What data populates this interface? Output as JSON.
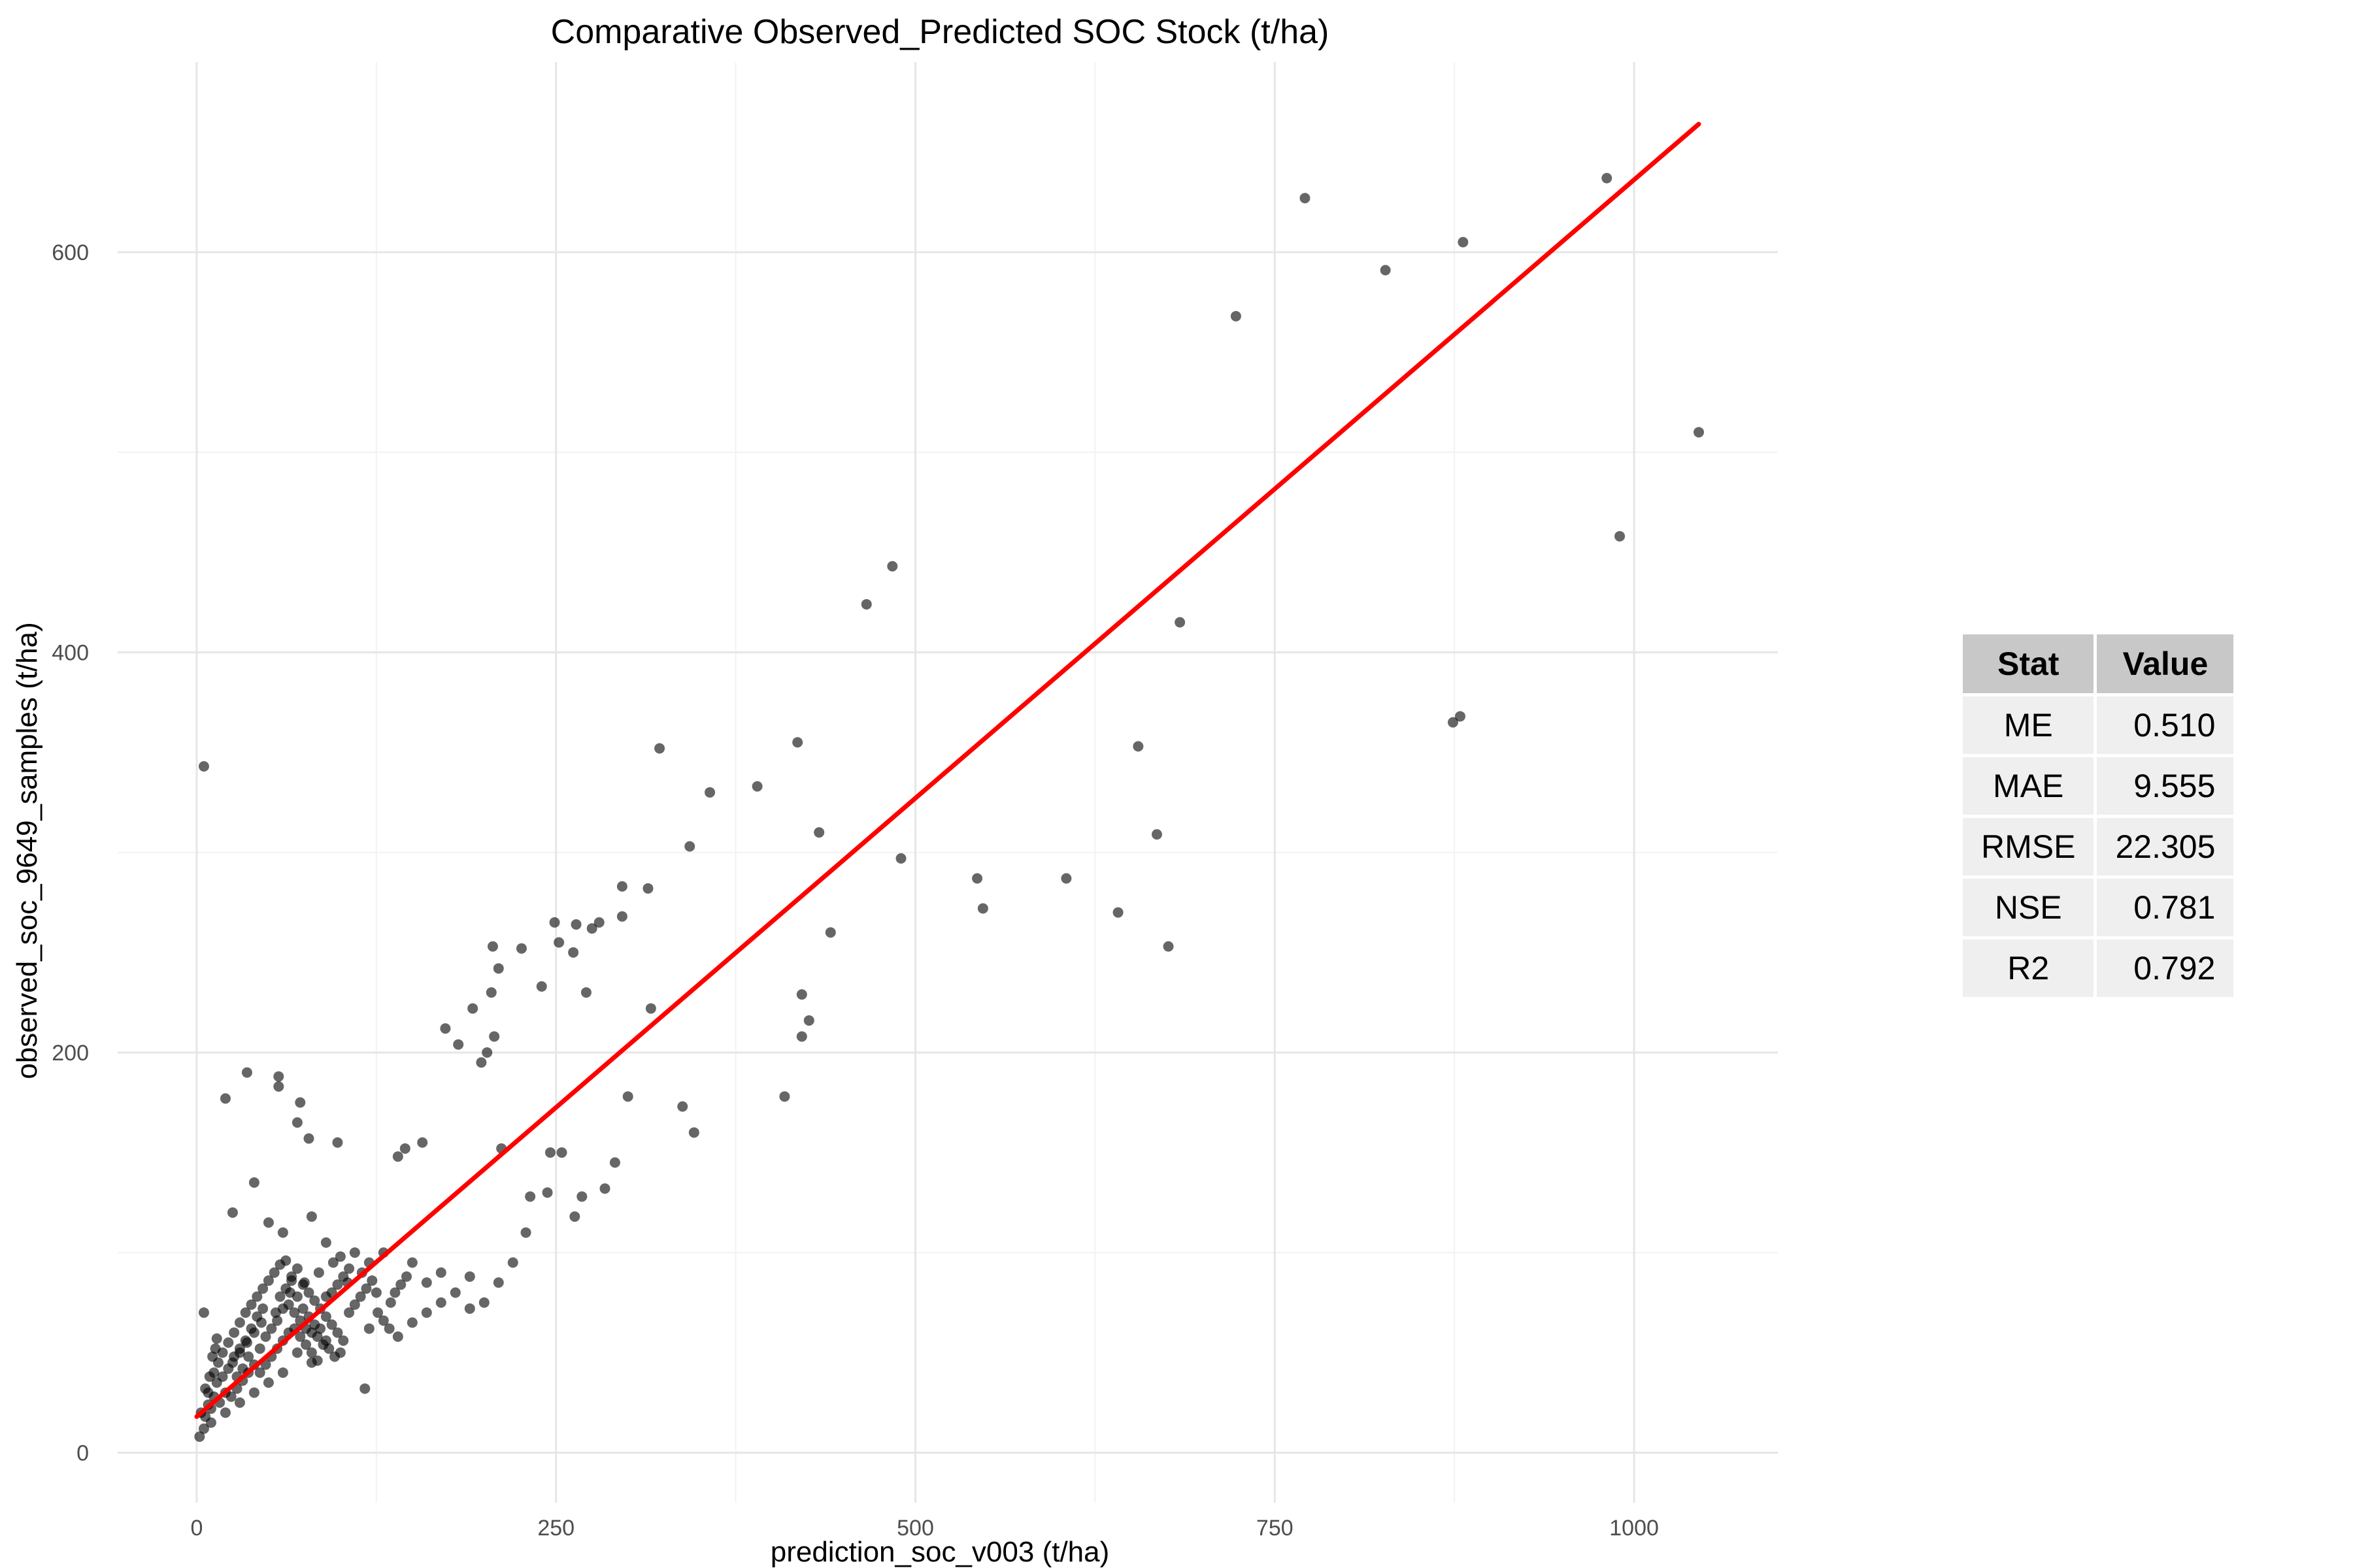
{
  "chart_data": {
    "type": "scatter",
    "title": "Comparative Observed_Predicted SOC Stock (t/ha)",
    "xlabel": "prediction_soc_v003 (t/ha)",
    "ylabel": "observed_soc_9649_samples (t/ha)",
    "xlim": [
      -55,
      1100
    ],
    "ylim": [
      -25,
      695
    ],
    "x_ticks": [
      0,
      250,
      500,
      750,
      1000
    ],
    "y_ticks": [
      0,
      200,
      400,
      600
    ],
    "grid": true,
    "point_color": "#000000",
    "line_color": "#ff0000",
    "fit_line": {
      "x": [
        0,
        1045
      ],
      "y": [
        18,
        664
      ]
    },
    "points": [
      [
        5,
        343
      ],
      [
        20,
        177
      ],
      [
        35,
        190
      ],
      [
        57,
        188
      ],
      [
        57,
        183
      ],
      [
        72,
        175
      ],
      [
        70,
        165
      ],
      [
        98,
        155
      ],
      [
        78,
        157
      ],
      [
        322,
        352
      ],
      [
        418,
        355
      ],
      [
        390,
        333
      ],
      [
        357,
        330
      ],
      [
        343,
        303
      ],
      [
        433,
        310
      ],
      [
        296,
        283
      ],
      [
        314,
        282
      ],
      [
        296,
        268
      ],
      [
        280,
        265
      ],
      [
        275,
        262
      ],
      [
        264,
        264
      ],
      [
        252,
        255
      ],
      [
        249,
        265
      ],
      [
        262,
        250
      ],
      [
        206,
        253
      ],
      [
        210,
        242
      ],
      [
        205,
        230
      ],
      [
        226,
        252
      ],
      [
        240,
        233
      ],
      [
        271,
        230
      ],
      [
        316,
        222
      ],
      [
        192,
        222
      ],
      [
        207,
        208
      ],
      [
        173,
        212
      ],
      [
        182,
        204
      ],
      [
        198,
        195
      ],
      [
        202,
        200
      ],
      [
        300,
        178
      ],
      [
        212,
        152
      ],
      [
        157,
        155
      ],
      [
        145,
        152
      ],
      [
        140,
        148
      ],
      [
        246,
        150
      ],
      [
        338,
        173
      ],
      [
        346,
        160
      ],
      [
        291,
        145
      ],
      [
        254,
        150
      ],
      [
        284,
        132
      ],
      [
        268,
        128
      ],
      [
        244,
        130
      ],
      [
        232,
        128
      ],
      [
        263,
        118
      ],
      [
        229,
        110
      ],
      [
        466,
        424
      ],
      [
        484,
        443
      ],
      [
        409,
        178
      ],
      [
        421,
        229
      ],
      [
        426,
        216
      ],
      [
        421,
        208
      ],
      [
        441,
        260
      ],
      [
        490,
        297
      ],
      [
        543,
        287
      ],
      [
        547,
        272
      ],
      [
        605,
        287
      ],
      [
        641,
        270
      ],
      [
        655,
        353
      ],
      [
        668,
        309
      ],
      [
        676,
        253
      ],
      [
        684,
        415
      ],
      [
        723,
        568
      ],
      [
        771,
        627
      ],
      [
        827,
        591
      ],
      [
        881,
        605
      ],
      [
        981,
        637
      ],
      [
        1045,
        510
      ],
      [
        990,
        458
      ],
      [
        874,
        365
      ],
      [
        879,
        368
      ],
      [
        117,
        32
      ],
      [
        14,
        57
      ],
      [
        5,
        70
      ],
      [
        25,
        120
      ],
      [
        40,
        135
      ],
      [
        50,
        115
      ],
      [
        60,
        110
      ],
      [
        80,
        118
      ],
      [
        90,
        105
      ],
      [
        100,
        98
      ],
      [
        110,
        100
      ],
      [
        120,
        95
      ],
      [
        130,
        100
      ],
      [
        150,
        95
      ],
      [
        160,
        85
      ],
      [
        170,
        90
      ],
      [
        180,
        80
      ],
      [
        190,
        88
      ],
      [
        200,
        75
      ],
      [
        210,
        85
      ],
      [
        220,
        95
      ],
      [
        190,
        72
      ],
      [
        170,
        75
      ],
      [
        150,
        65
      ],
      [
        160,
        70
      ],
      [
        140,
        58
      ],
      [
        120,
        62
      ],
      [
        100,
        50
      ],
      [
        90,
        56
      ],
      [
        80,
        45
      ],
      [
        70,
        50
      ],
      [
        60,
        40
      ],
      [
        50,
        35
      ],
      [
        40,
        30
      ],
      [
        30,
        25
      ],
      [
        20,
        20
      ],
      [
        10,
        15
      ],
      [
        5,
        12
      ],
      [
        2,
        8
      ],
      [
        8,
        30
      ],
      [
        12,
        40
      ],
      [
        15,
        45
      ],
      [
        18,
        50
      ],
      [
        22,
        55
      ],
      [
        26,
        60
      ],
      [
        30,
        65
      ],
      [
        34,
        70
      ],
      [
        38,
        74
      ],
      [
        42,
        78
      ],
      [
        46,
        82
      ],
      [
        50,
        86
      ],
      [
        54,
        90
      ],
      [
        58,
        94
      ],
      [
        62,
        96
      ],
      [
        66,
        88
      ],
      [
        70,
        92
      ],
      [
        74,
        84
      ],
      [
        78,
        80
      ],
      [
        82,
        76
      ],
      [
        86,
        72
      ],
      [
        90,
        68
      ],
      [
        94,
        64
      ],
      [
        98,
        60
      ],
      [
        102,
        56
      ],
      [
        106,
        70
      ],
      [
        110,
        74
      ],
      [
        114,
        78
      ],
      [
        118,
        82
      ],
      [
        122,
        86
      ],
      [
        126,
        70
      ],
      [
        130,
        66
      ],
      [
        134,
        62
      ],
      [
        138,
        80
      ],
      [
        142,
        84
      ],
      [
        146,
        88
      ],
      [
        25,
        45
      ],
      [
        28,
        38
      ],
      [
        32,
        42
      ],
      [
        36,
        48
      ],
      [
        44,
        52
      ],
      [
        48,
        58
      ],
      [
        52,
        62
      ],
      [
        56,
        66
      ],
      [
        60,
        72
      ],
      [
        64,
        74
      ],
      [
        68,
        70
      ],
      [
        72,
        66
      ],
      [
        76,
        62
      ],
      [
        80,
        60
      ],
      [
        84,
        58
      ],
      [
        88,
        54
      ],
      [
        92,
        52
      ],
      [
        96,
        48
      ],
      [
        30,
        50
      ],
      [
        35,
        55
      ],
      [
        40,
        60
      ],
      [
        45,
        65
      ],
      [
        55,
        70
      ],
      [
        65,
        80
      ],
      [
        75,
        85
      ],
      [
        85,
        90
      ],
      [
        95,
        95
      ],
      [
        105,
        85
      ],
      [
        115,
        90
      ],
      [
        125,
        80
      ],
      [
        135,
        75
      ],
      [
        20,
        30
      ],
      [
        24,
        28
      ],
      [
        28,
        32
      ],
      [
        32,
        36
      ],
      [
        36,
        40
      ],
      [
        40,
        44
      ],
      [
        16,
        25
      ],
      [
        14,
        35
      ],
      [
        18,
        38
      ],
      [
        22,
        42
      ],
      [
        26,
        48
      ],
      [
        30,
        52
      ],
      [
        34,
        56
      ],
      [
        38,
        62
      ],
      [
        42,
        68
      ],
      [
        46,
        72
      ],
      [
        10,
        22
      ],
      [
        12,
        28
      ],
      [
        6,
        18
      ],
      [
        8,
        24
      ],
      [
        3,
        20
      ],
      [
        6,
        32
      ],
      [
        9,
        38
      ],
      [
        11,
        48
      ],
      [
        13,
        52
      ],
      [
        58,
        78
      ],
      [
        62,
        82
      ],
      [
        66,
        86
      ],
      [
        70,
        78
      ],
      [
        74,
        72
      ],
      [
        78,
        68
      ],
      [
        82,
        64
      ],
      [
        86,
        62
      ],
      [
        90,
        78
      ],
      [
        94,
        80
      ],
      [
        98,
        84
      ],
      [
        102,
        88
      ],
      [
        106,
        92
      ],
      [
        44,
        40
      ],
      [
        48,
        44
      ],
      [
        52,
        48
      ],
      [
        56,
        52
      ],
      [
        60,
        56
      ],
      [
        64,
        60
      ],
      [
        68,
        62
      ],
      [
        72,
        58
      ],
      [
        76,
        54
      ],
      [
        80,
        50
      ],
      [
        84,
        46
      ]
    ]
  },
  "stats_table": {
    "headers": [
      "Stat",
      "Value"
    ],
    "rows": [
      [
        "ME",
        "0.510"
      ],
      [
        "MAE",
        "9.555"
      ],
      [
        "RMSE",
        "22.305"
      ],
      [
        "NSE",
        "0.781"
      ],
      [
        "R2",
        "0.792"
      ]
    ]
  }
}
